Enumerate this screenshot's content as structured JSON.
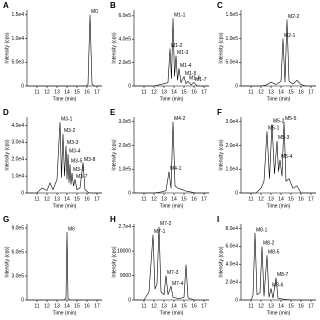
{
  "chart_data": [
    {
      "type": "line",
      "label": "A",
      "x_label": "Time (min)",
      "y_label": "Intensity (cps)",
      "color": "#000000",
      "x": [
        10,
        11,
        12,
        13,
        14,
        15,
        15.9,
        16.1,
        16.3,
        16.5,
        16.7,
        17,
        17.5
      ],
      "values": [
        0,
        0,
        0,
        0,
        0,
        0,
        0,
        300,
        15000,
        400,
        0,
        0,
        0
      ],
      "xlim": [
        10,
        17.5
      ],
      "xticks": [
        11,
        12,
        13,
        14,
        15,
        16,
        17
      ],
      "ylim": [
        0,
        16000
      ],
      "yticks": [
        0,
        {
          "value": 5000,
          "label": "5.0e3"
        },
        {
          "value": 10000,
          "label": "1.0e4"
        },
        {
          "value": 15000,
          "label": "1.5e4"
        }
      ],
      "annotations": [
        {
          "text": "M0",
          "x": 16.3,
          "y": 15000
        }
      ]
    },
    {
      "type": "line",
      "label": "B",
      "x_label": "Time (min)",
      "y_label": "Intensity (cps)",
      "color": "#000000",
      "x": [
        10,
        12,
        13,
        13.4,
        13.6,
        13.75,
        13.9,
        14.05,
        14.2,
        14.35,
        14.5,
        14.7,
        15,
        15.2,
        15.4,
        15.7,
        16,
        16.3,
        17.5
      ],
      "values": [
        0,
        0,
        20000,
        30000,
        320000,
        60000,
        580000,
        80000,
        260000,
        50000,
        150000,
        30000,
        80000,
        20000,
        40000,
        10000,
        30000,
        0,
        0
      ],
      "xlim": [
        10,
        17.5
      ],
      "xticks": [
        11,
        12,
        13,
        14,
        15,
        16,
        17
      ],
      "ylim": [
        0,
        650000
      ],
      "yticks": [
        0,
        {
          "value": 200000,
          "label": "2.0e5"
        },
        {
          "value": 400000,
          "label": "4.0e5"
        },
        {
          "value": 600000,
          "label": "6.0e5"
        }
      ],
      "annotations": [
        {
          "text": "M1-1",
          "x": 13.9,
          "y": 580000
        },
        {
          "text": "M1-2",
          "x": 13.6,
          "y": 320000
        },
        {
          "text": "M1-3",
          "x": 14.2,
          "y": 260000
        },
        {
          "text": "M1-4",
          "x": 14.5,
          "y": 150000
        },
        {
          "text": "M1-5",
          "x": 15,
          "y": 80000
        },
        {
          "text": "M1-6",
          "x": 15.4,
          "y": 40000
        },
        {
          "text": "M1-7",
          "x": 16,
          "y": 30000
        }
      ]
    },
    {
      "type": "line",
      "label": "C",
      "x_label": "Time (min)",
      "y_label": "Intensity (cps)",
      "color": "#000000",
      "x": [
        10,
        12,
        12.5,
        13,
        13.5,
        14,
        14.2,
        14.4,
        14.6,
        14.8,
        15.2,
        15.6,
        16,
        16.5,
        17.5
      ],
      "values": [
        0,
        0,
        2000,
        8000,
        3000,
        10000,
        100000,
        8000,
        140000,
        10000,
        4000,
        12000,
        3000,
        0,
        0
      ],
      "xlim": [
        10,
        17.5
      ],
      "xticks": [
        11,
        12,
        13,
        14,
        15,
        16,
        17
      ],
      "ylim": [
        0,
        160000
      ],
      "yticks": [
        0,
        {
          "value": 50000,
          "label": "5.0e4"
        },
        {
          "value": 100000,
          "label": "1.0e5"
        },
        {
          "value": 150000,
          "label": "1.5e5"
        }
      ],
      "annotations": [
        {
          "text": "M2-2",
          "x": 14.6,
          "y": 140000
        },
        {
          "text": "M2-1",
          "x": 14.2,
          "y": 100000
        }
      ]
    },
    {
      "type": "line",
      "label": "D",
      "x_label": "Time (min)",
      "y_label": "Intensity (cps)",
      "color": "#000000",
      "x": [
        10,
        11,
        11.5,
        12,
        12.3,
        12.6,
        13,
        13.3,
        13.45,
        13.6,
        13.75,
        13.9,
        14,
        14.1,
        14.2,
        14.3,
        14.4,
        14.5,
        14.65,
        14.8,
        15,
        15.3,
        15.6,
        15.8,
        16.2,
        17.5
      ],
      "values": [
        0,
        0,
        3000,
        1500,
        6000,
        2000,
        8000,
        42000,
        9000,
        35000,
        10000,
        28000,
        8000,
        23000,
        6000,
        17000,
        5000,
        12000,
        4000,
        8000,
        2000,
        3000,
        18000,
        2000,
        0,
        0
      ],
      "xlim": [
        10,
        17.5
      ],
      "xticks": [
        11,
        12,
        13,
        14,
        15,
        16,
        17
      ],
      "ylim": [
        0,
        45000
      ],
      "yticks": [
        0,
        {
          "value": 10000,
          "label": "1.0e4"
        },
        {
          "value": 20000,
          "label": "2.0e4"
        },
        {
          "value": 30000,
          "label": "3.0e4"
        },
        {
          "value": 40000,
          "label": "4.0e4"
        }
      ],
      "annotations": [
        {
          "text": "M3-1",
          "x": 13.3,
          "y": 42000
        },
        {
          "text": "M3-2",
          "x": 13.6,
          "y": 35000
        },
        {
          "text": "M3-3",
          "x": 13.9,
          "y": 28000
        },
        {
          "text": "M3-4",
          "x": 14.1,
          "y": 23000
        },
        {
          "text": "M3-5",
          "x": 14.3,
          "y": 17000
        },
        {
          "text": "M3-6",
          "x": 14.5,
          "y": 12000
        },
        {
          "text": "M3-7",
          "x": 14.8,
          "y": 8000
        },
        {
          "text": "M3-8",
          "x": 15.6,
          "y": 18000
        }
      ]
    },
    {
      "type": "line",
      "label": "E",
      "x_label": "Time (min)",
      "y_label": "Intensity (cps)",
      "color": "#000000",
      "x": [
        10,
        12,
        12.8,
        13.2,
        13.5,
        13.7,
        13.9,
        14.1,
        14.4,
        14.8,
        15.2,
        15.6,
        16.2,
        17.5
      ],
      "values": [
        0,
        0,
        5000,
        10000,
        90000,
        20000,
        300000,
        30000,
        20000,
        15000,
        8000,
        5000,
        0,
        0
      ],
      "xlim": [
        10,
        17.5
      ],
      "xticks": [
        11,
        12,
        13,
        14,
        15,
        16,
        17
      ],
      "ylim": [
        0,
        320000
      ],
      "yticks": [
        0,
        {
          "value": 100000,
          "label": "1.0e5"
        },
        {
          "value": 200000,
          "label": "2.0e5"
        },
        {
          "value": 300000,
          "label": "3.0e5"
        }
      ],
      "annotations": [
        {
          "text": "M4-2",
          "x": 13.9,
          "y": 300000
        },
        {
          "text": "M4-1",
          "x": 13.5,
          "y": 90000
        }
      ]
    },
    {
      "type": "line",
      "label": "F",
      "x_label": "Time (min)",
      "y_label": "Intensity (cps)",
      "color": "#000000",
      "x": [
        10,
        11.5,
        12,
        12.3,
        12.6,
        12.85,
        13.1,
        13.35,
        13.6,
        13.75,
        13.9,
        14.1,
        14.3,
        14.5,
        14.8,
        15.2,
        15.6,
        16,
        17.5
      ],
      "values": [
        0,
        0,
        2000,
        5000,
        26000,
        6000,
        29000,
        8000,
        22000,
        9000,
        14000,
        7000,
        30000,
        5000,
        6000,
        2000,
        3000,
        0,
        0
      ],
      "xlim": [
        10,
        17.5
      ],
      "xticks": [
        11,
        12,
        13,
        14,
        15,
        16,
        17
      ],
      "ylim": [
        0,
        32000
      ],
      "yticks": [
        0,
        {
          "value": 10000,
          "label": "1.0e4"
        },
        {
          "value": 20000,
          "label": "2.0e4"
        },
        {
          "value": 30000,
          "label": "3.0e4"
        }
      ],
      "annotations": [
        {
          "text": "M5-1",
          "x": 12.6,
          "y": 26000
        },
        {
          "text": "M5-2",
          "x": 13.1,
          "y": 29000
        },
        {
          "text": "M5-3",
          "x": 13.6,
          "y": 22000
        },
        {
          "text": "M5-4",
          "x": 13.9,
          "y": 14000
        },
        {
          "text": "M5-5",
          "x": 14.3,
          "y": 30000
        }
      ]
    },
    {
      "type": "line",
      "label": "G",
      "x_label": "Time (min)",
      "y_label": "Intensity (cps)",
      "color": "#000000",
      "x": [
        10,
        13.7,
        13.9,
        14,
        14.1,
        14.3,
        17.5
      ],
      "values": [
        0,
        0,
        20000,
        850000,
        20000,
        0,
        0
      ],
      "xlim": [
        10,
        17.5
      ],
      "xticks": [
        11,
        12,
        13,
        14,
        15,
        16,
        17
      ],
      "ylim": [
        0,
        950000
      ],
      "yticks": [
        0,
        {
          "value": 300000,
          "label": "3.0e5"
        },
        {
          "value": 600000,
          "label": "6.0e5"
        },
        {
          "value": 900000,
          "label": "9.0e5"
        }
      ],
      "annotations": [
        {
          "text": "M6",
          "x": 14,
          "y": 850000
        }
      ]
    },
    {
      "type": "line",
      "label": "H",
      "x_label": "Time (min)",
      "y_label": "Intensity (cps)",
      "color": "#000000",
      "x": [
        10,
        11,
        11.5,
        11.9,
        12.1,
        12.3,
        12.5,
        12.7,
        13,
        13.2,
        13.4,
        13.7,
        13.9,
        14.5,
        15,
        15.2,
        15.4,
        16,
        17.5
      ],
      "values": [
        0,
        0,
        3000,
        24000,
        4000,
        6000,
        27000,
        3000,
        2000,
        9000,
        2000,
        5000,
        1000,
        500,
        1000,
        13000,
        800,
        0,
        0
      ],
      "xlim": [
        10,
        17.5
      ],
      "xticks": [
        11,
        12,
        13,
        14,
        15,
        16,
        17
      ],
      "ylim": [
        0,
        28000
      ],
      "yticks": [
        0,
        9000,
        18000,
        {
          "value": 27000,
          "label": "2.7e4"
        }
      ],
      "annotations": [
        {
          "text": "M7-1",
          "x": 11.9,
          "y": 24000
        },
        {
          "text": "M7-2",
          "x": 12.5,
          "y": 27000
        },
        {
          "text": "M7-3",
          "x": 13.2,
          "y": 9000
        },
        {
          "text": "M7-4",
          "x": 13.7,
          "y": 5000
        }
      ]
    },
    {
      "type": "line",
      "label": "I",
      "x_label": "Time (min)",
      "y_label": "Intensity (cps)",
      "color": "#000000",
      "x": [
        10,
        11,
        11.2,
        11.4,
        11.6,
        11.9,
        12.1,
        12.3,
        12.6,
        12.8,
        13,
        13.2,
        13.5,
        13.7,
        14.2,
        15,
        17.5
      ],
      "values": [
        0,
        0,
        5000,
        75000,
        6000,
        8000,
        60000,
        4000,
        50000,
        3000,
        13000,
        2000,
        25000,
        2000,
        1000,
        0,
        0
      ],
      "xlim": [
        10,
        17.5
      ],
      "xticks": [
        11,
        12,
        13,
        14,
        15,
        16,
        17
      ],
      "ylim": [
        0,
        85000
      ],
      "yticks": [
        0,
        {
          "value": 20000,
          "label": "2.0e4"
        },
        {
          "value": 40000,
          "label": "4.0e4"
        },
        {
          "value": 60000,
          "label": "6.0e4"
        },
        {
          "value": 80000,
          "label": "8.0e4"
        }
      ],
      "annotations": [
        {
          "text": "M8-1",
          "x": 11.4,
          "y": 75000
        },
        {
          "text": "M8-2",
          "x": 12.1,
          "y": 60000
        },
        {
          "text": "M8-5",
          "x": 12.6,
          "y": 50000
        },
        {
          "text": "M8-6",
          "x": 13,
          "y": 13000
        },
        {
          "text": "M8-7",
          "x": 13.5,
          "y": 25000
        }
      ]
    }
  ]
}
